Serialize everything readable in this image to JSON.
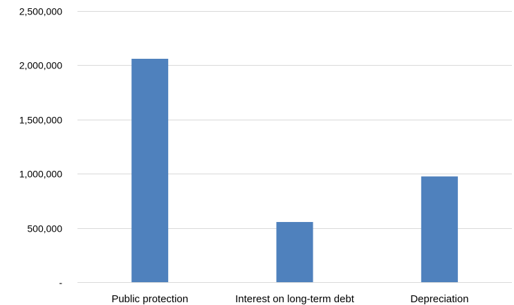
{
  "chart_data": {
    "type": "bar",
    "title": "",
    "xlabel": "",
    "ylabel": "",
    "categories": [
      "Public protection",
      "Interest on long-term debt",
      "Depreciation"
    ],
    "values": [
      2060000,
      555000,
      975000
    ],
    "ylim": [
      0,
      2500000
    ],
    "yticks": [
      0,
      500000,
      1000000,
      1500000,
      2000000,
      2500000
    ],
    "ytick_labels": [
      "-",
      "500,000",
      "1,000,000",
      "1,500,000",
      "2,000,000",
      "2,500,000"
    ],
    "grid": true,
    "legend": "none",
    "bar_color": "#4f81bd",
    "grid_color": "#d9d9d9"
  }
}
